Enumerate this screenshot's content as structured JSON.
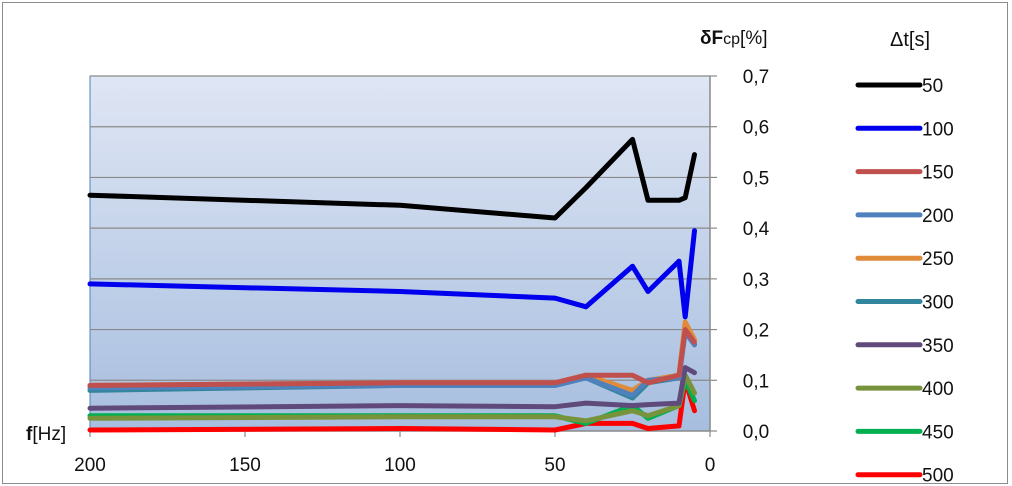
{
  "chart_data": {
    "type": "line",
    "xlabel_bold": "f",
    "xlabel_rest": "[Hz]",
    "ylabel_bold": "δF",
    "ylabel_sub": "cp",
    "ylabel_rest": "[%]",
    "legend_title": "Δt[s]",
    "xlim": [
      200,
      0
    ],
    "ylim": [
      0,
      0.7
    ],
    "x_ticks": [
      "200",
      "150",
      "100",
      "50",
      "0"
    ],
    "y_ticks": [
      "0,0",
      "0,1",
      "0,2",
      "0,3",
      "0,4",
      "0,5",
      "0,6",
      "0,7"
    ],
    "grid": true,
    "legend_position": "right",
    "series": [
      {
        "name": "50",
        "color": "#000000",
        "x": [
          200,
          100,
          50,
          40,
          25,
          20,
          10,
          8,
          5
        ],
        "y": [
          0.465,
          0.445,
          0.42,
          0.48,
          0.575,
          0.455,
          0.455,
          0.46,
          0.545
        ]
      },
      {
        "name": "100",
        "color": "#0000ee",
        "x": [
          200,
          100,
          50,
          40,
          25,
          20,
          10,
          8,
          5
        ],
        "y": [
          0.29,
          0.275,
          0.262,
          0.245,
          0.325,
          0.275,
          0.335,
          0.225,
          0.395
        ]
      },
      {
        "name": "150",
        "color": "#c0504d",
        "x": [
          200,
          100,
          50,
          40,
          25,
          20,
          10,
          8,
          5
        ],
        "y": [
          0.09,
          0.095,
          0.095,
          0.11,
          0.11,
          0.095,
          0.11,
          0.2,
          0.175
        ]
      },
      {
        "name": "200",
        "color": "#4f81bd",
        "x": [
          200,
          100,
          50,
          40,
          25,
          20,
          10,
          8,
          5
        ],
        "y": [
          0.085,
          0.09,
          0.09,
          0.105,
          0.07,
          0.1,
          0.105,
          0.195,
          0.17
        ]
      },
      {
        "name": "250",
        "color": "#e08b3a",
        "x": [
          200,
          100,
          50,
          40,
          25,
          20,
          10,
          8,
          5
        ],
        "y": [
          0.09,
          0.095,
          0.095,
          0.11,
          0.08,
          0.1,
          0.11,
          0.215,
          0.18
        ]
      },
      {
        "name": "300",
        "color": "#31859c",
        "x": [
          200,
          100,
          50,
          40,
          25,
          20,
          10,
          8,
          5
        ],
        "y": [
          0.08,
          0.09,
          0.09,
          0.105,
          0.065,
          0.095,
          0.105,
          0.2,
          0.17
        ]
      },
      {
        "name": "350",
        "color": "#604a7b",
        "x": [
          200,
          100,
          50,
          40,
          25,
          20,
          10,
          8,
          5
        ],
        "y": [
          0.045,
          0.05,
          0.048,
          0.055,
          0.05,
          0.052,
          0.055,
          0.125,
          0.115
        ]
      },
      {
        "name": "400",
        "color": "#77933c",
        "x": [
          200,
          100,
          50,
          40,
          25,
          20,
          10,
          8,
          5
        ],
        "y": [
          0.025,
          0.028,
          0.028,
          0.02,
          0.04,
          0.03,
          0.05,
          0.11,
          0.075
        ]
      },
      {
        "name": "450",
        "color": "#00b050",
        "x": [
          200,
          100,
          50,
          40,
          25,
          20,
          10,
          8,
          5
        ],
        "y": [
          0.03,
          0.03,
          0.03,
          0.015,
          0.05,
          0.025,
          0.05,
          0.1,
          0.06
        ]
      },
      {
        "name": "500",
        "color": "#ff0000",
        "x": [
          200,
          100,
          50,
          40,
          25,
          20,
          10,
          8,
          5
        ],
        "y": [
          0.002,
          0.005,
          0.002,
          0.015,
          0.015,
          0.005,
          0.01,
          0.1,
          0.04
        ]
      }
    ]
  }
}
